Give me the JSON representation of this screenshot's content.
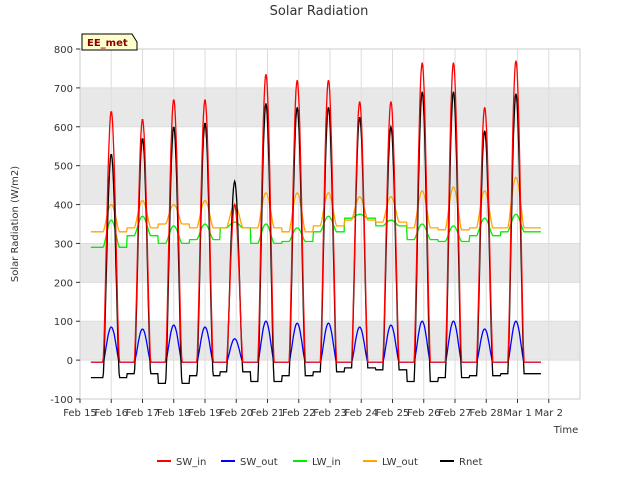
{
  "chart_data": {
    "type": "line",
    "title": "Solar Radiation",
    "xlabel": "Time",
    "ylabel": "Solar Radiation (W/m2)",
    "station_badge": "EE_met",
    "ylim": [
      -100,
      800
    ],
    "xlim": [
      0,
      16
    ],
    "yticks": [
      -100,
      0,
      100,
      200,
      300,
      400,
      500,
      600,
      700,
      800
    ],
    "xtick_labels": [
      "Feb 15",
      "Feb 16",
      "Feb 17",
      "Feb 18",
      "Feb 19",
      "Feb 20",
      "Feb 21",
      "Feb 22",
      "Feb 23",
      "Feb 24",
      "Feb 25",
      "Feb 26",
      "Feb 27",
      "Feb 28",
      "Mar 1",
      "Mar 2"
    ],
    "xtick_positions": [
      0,
      1,
      2,
      3,
      4,
      5,
      6,
      7,
      8,
      9,
      10,
      11,
      12,
      13,
      14,
      15
    ],
    "x_start_day": 0.35,
    "x_end_day": 14.75,
    "legend_position": "bottom",
    "grid": true,
    "colors": {
      "SW_in": "#ff0000",
      "SW_out": "#0000ff",
      "LW_in": "#00ee00",
      "LW_out": "#ffa500",
      "Rnet": "#000000",
      "band": "#e8e8e8",
      "badge_bg": "#ffffcc"
    },
    "days": [
      "Feb 16",
      "Feb 17",
      "Feb 18",
      "Feb 19",
      "Feb 20",
      "Feb 21",
      "Feb 22",
      "Feb 23",
      "Feb 24",
      "Feb 25",
      "Feb 26",
      "Feb 27",
      "Feb 28",
      "Mar 1"
    ],
    "day_centers": [
      1.0,
      2.0,
      3.0,
      4.0,
      4.95,
      5.95,
      6.95,
      7.95,
      8.95,
      9.95,
      10.95,
      11.95,
      12.95,
      13.95
    ],
    "series": [
      {
        "name": "SW_in",
        "night": -5,
        "daily_peak": [
          640,
          620,
          670,
          670,
          400,
          735,
          720,
          720,
          665,
          665,
          765,
          765,
          650,
          770
        ]
      },
      {
        "name": "SW_out",
        "night": -5,
        "daily_peak": [
          85,
          80,
          90,
          85,
          55,
          100,
          95,
          95,
          85,
          90,
          100,
          100,
          80,
          100
        ]
      },
      {
        "name": "LW_in",
        "night": [
          290,
          320,
          300,
          310,
          340,
          300,
          305,
          330,
          365,
          345,
          310,
          305,
          320,
          330
        ],
        "daily_peak": [
          360,
          370,
          345,
          350,
          355,
          350,
          340,
          370,
          375,
          360,
          350,
          345,
          365,
          375
        ]
      },
      {
        "name": "LW_out",
        "night": [
          330,
          340,
          350,
          340,
          340,
          340,
          330,
          345,
          360,
          355,
          340,
          335,
          340,
          340
        ],
        "daily_peak": [
          400,
          410,
          400,
          410,
          400,
          430,
          430,
          430,
          420,
          420,
          435,
          445,
          435,
          470
        ]
      },
      {
        "name": "Rnet",
        "night": [
          -45,
          -35,
          -60,
          -40,
          -30,
          -55,
          -40,
          -30,
          -20,
          -25,
          -55,
          -45,
          -40,
          -35
        ],
        "daily_peak": [
          530,
          570,
          600,
          610,
          460,
          660,
          650,
          650,
          625,
          600,
          690,
          690,
          590,
          685
        ]
      }
    ]
  }
}
